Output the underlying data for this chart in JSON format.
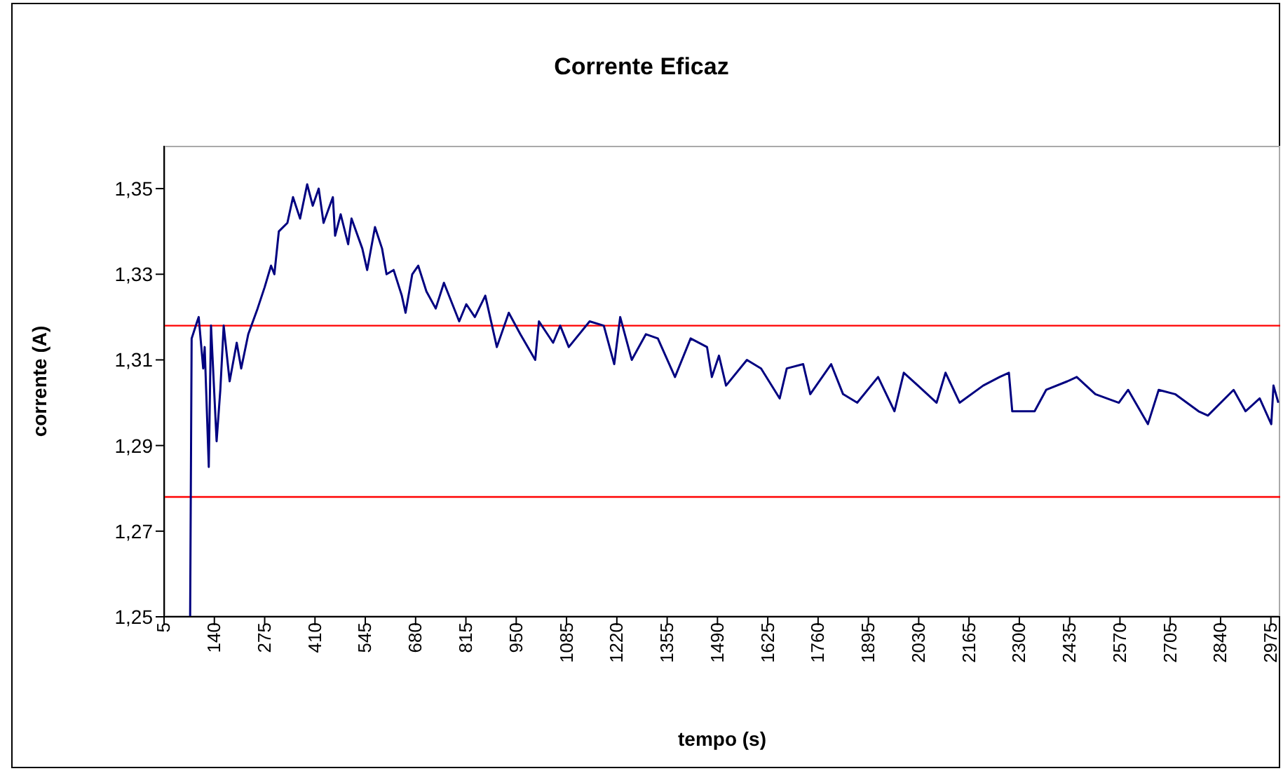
{
  "chart_data": {
    "type": "line",
    "title": "Corrente Eficaz",
    "xlabel": "tempo (s)",
    "ylabel": "corrente (A)",
    "xlim": [
      5,
      3000
    ],
    "xticks": [
      5,
      140,
      275,
      410,
      545,
      680,
      815,
      950,
      1085,
      1220,
      1355,
      1490,
      1625,
      1760,
      1895,
      2030,
      2165,
      2300,
      2435,
      2570,
      2705,
      2840,
      2975
    ],
    "ylim": [
      1.25,
      1.36
    ],
    "yticks": [
      {
        "value": 1.25,
        "label": "1,25"
      },
      {
        "value": 1.27,
        "label": "1,27"
      },
      {
        "value": 1.29,
        "label": "1,29"
      },
      {
        "value": 1.31,
        "label": "1,31"
      },
      {
        "value": 1.33,
        "label": "1,33"
      },
      {
        "value": 1.35,
        "label": "1,35"
      }
    ],
    "grid": false,
    "legend": false,
    "ref_lines": [
      {
        "axis": "y",
        "value": 1.318,
        "color": "#ff0000"
      },
      {
        "axis": "y",
        "value": 1.278,
        "color": "#ff0000"
      }
    ],
    "x": [
      75,
      79,
      94,
      98,
      110,
      114,
      125,
      131,
      146,
      156,
      165,
      181,
      200,
      212,
      231,
      256,
      275,
      292,
      301,
      313,
      336,
      351,
      370,
      389,
      404,
      420,
      433,
      458,
      464,
      479,
      499,
      508,
      537,
      550,
      571,
      590,
      602,
      621,
      643,
      653,
      671,
      687,
      709,
      734,
      756,
      797,
      816,
      839,
      867,
      898,
      930,
      961,
      1001,
      1011,
      1049,
      1068,
      1091,
      1147,
      1185,
      1213,
      1229,
      1260,
      1298,
      1330,
      1376,
      1418,
      1462,
      1475,
      1494,
      1513,
      1569,
      1607,
      1657,
      1676,
      1720,
      1739,
      1795,
      1827,
      1865,
      1921,
      1965,
      1990,
      2028,
      2078,
      2102,
      2140,
      2203,
      2247,
      2272,
      2281,
      2341,
      2372,
      2429,
      2454,
      2504,
      2567,
      2592,
      2645,
      2674,
      2718,
      2781,
      2806,
      2875,
      2907,
      2945,
      2976,
      2982,
      2995
    ],
    "series": [
      {
        "color": "#000080",
        "values": [
          1.25,
          1.315,
          1.319,
          1.32,
          1.308,
          1.313,
          1.285,
          1.318,
          1.291,
          1.303,
          1.318,
          1.305,
          1.314,
          1.308,
          1.316,
          1.322,
          1.327,
          1.332,
          1.33,
          1.34,
          1.342,
          1.348,
          1.343,
          1.351,
          1.346,
          1.35,
          1.342,
          1.348,
          1.339,
          1.344,
          1.337,
          1.343,
          1.336,
          1.331,
          1.341,
          1.336,
          1.33,
          1.331,
          1.325,
          1.321,
          1.33,
          1.332,
          1.326,
          1.322,
          1.328,
          1.319,
          1.323,
          1.32,
          1.325,
          1.313,
          1.321,
          1.316,
          1.31,
          1.319,
          1.314,
          1.318,
          1.313,
          1.319,
          1.318,
          1.309,
          1.32,
          1.31,
          1.316,
          1.315,
          1.306,
          1.315,
          1.313,
          1.306,
          1.311,
          1.304,
          1.31,
          1.308,
          1.301,
          1.308,
          1.309,
          1.302,
          1.309,
          1.302,
          1.3,
          1.306,
          1.298,
          1.307,
          1.304,
          1.3,
          1.307,
          1.3,
          1.304,
          1.306,
          1.307,
          1.298,
          1.298,
          1.303,
          1.305,
          1.306,
          1.302,
          1.3,
          1.303,
          1.295,
          1.303,
          1.302,
          1.298,
          1.297,
          1.303,
          1.298,
          1.301,
          1.295,
          1.304,
          1.3
        ]
      }
    ]
  }
}
